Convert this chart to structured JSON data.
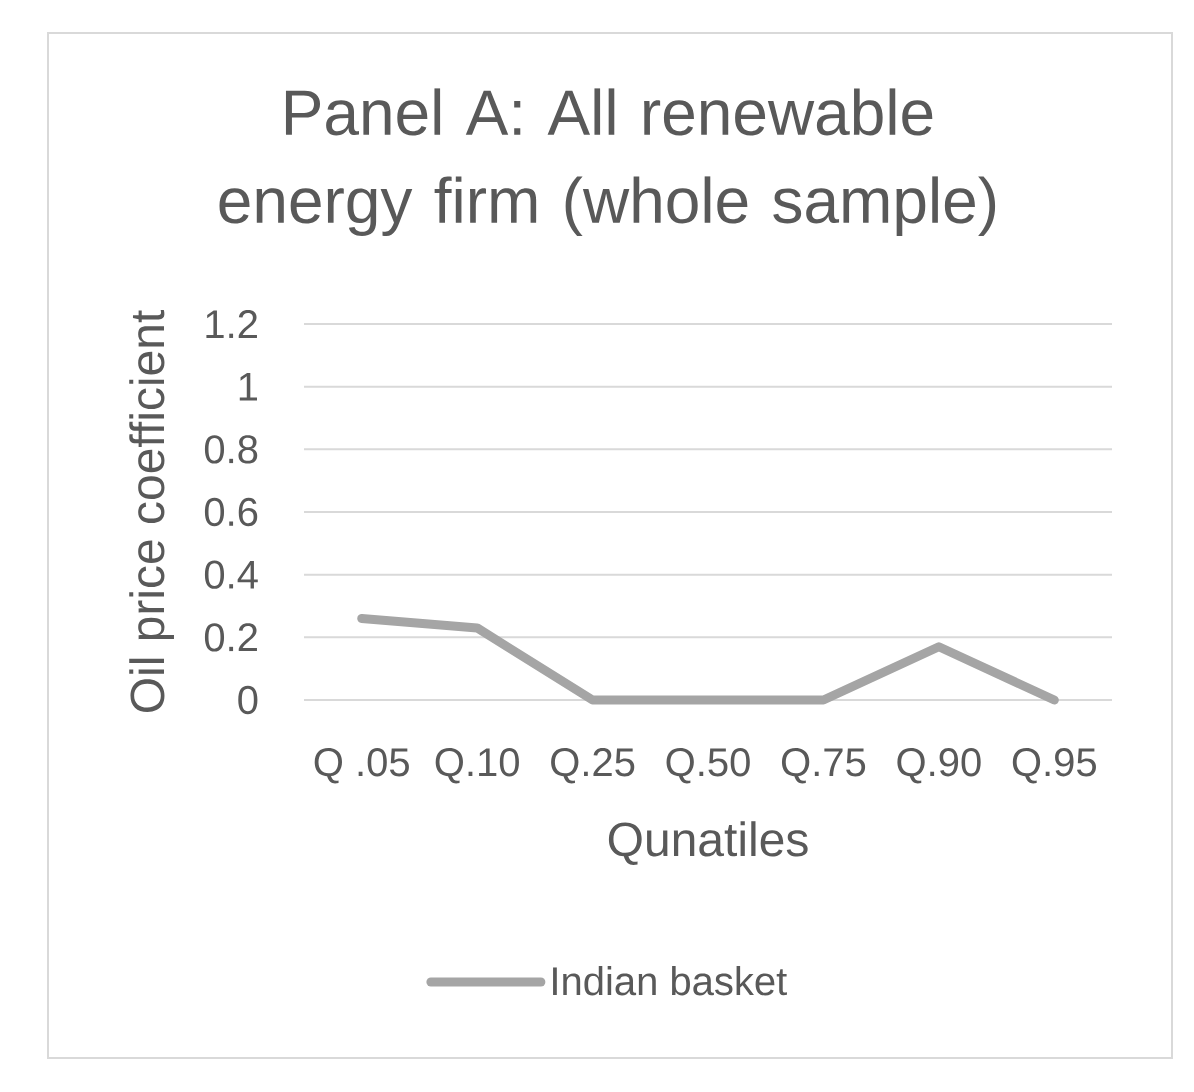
{
  "chart_data": {
    "type": "line",
    "title": "Panel A: All renewable energy firm (whole sample)",
    "xlabel": "Qunatiles",
    "ylabel": "Oil price coefficient",
    "categories": [
      "Q .05",
      "Q.10",
      "Q.25",
      "Q.50",
      "Q.75",
      "Q.90",
      "Q.95"
    ],
    "series": [
      {
        "name": "Indian basket",
        "color": "#a5a5a5",
        "values": [
          0.26,
          0.23,
          0,
          0,
          0,
          0.17,
          0
        ]
      }
    ],
    "ylim": [
      0,
      1.2
    ],
    "yticks": [
      0,
      0.2,
      0.4,
      0.6,
      0.8,
      1,
      1.2
    ],
    "grid": "y",
    "legend": "bottom",
    "line_style": "solid"
  }
}
